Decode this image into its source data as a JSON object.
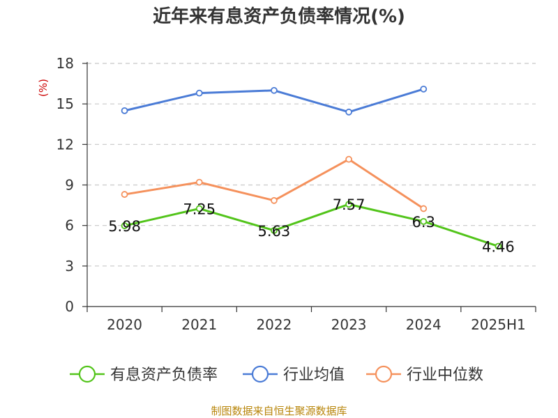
{
  "chart_data": {
    "type": "line",
    "title": "近年来有息资产负债率情况(%)",
    "unit_label": "(%)",
    "categories": [
      "2020",
      "2021",
      "2022",
      "2023",
      "2024",
      "2025H1"
    ],
    "ylim": [
      0,
      18
    ],
    "yticks": [
      "0",
      "3",
      "6",
      "9",
      "12",
      "15",
      "18"
    ],
    "grid": true,
    "legend_position": "bottom",
    "series": [
      {
        "name": "有息资产负债率",
        "color": "#52c41a",
        "values": [
          5.98,
          7.25,
          5.63,
          7.57,
          6.3,
          4.46
        ],
        "labels": [
          "5.98",
          "7.25",
          "5.63",
          "7.57",
          "6.3",
          "4.46"
        ]
      },
      {
        "name": "行业均值",
        "color": "#4a7bd6",
        "values": [
          14.5,
          15.8,
          16.0,
          14.4,
          16.1,
          null
        ]
      },
      {
        "name": "行业中位数",
        "color": "#f5915c",
        "values": [
          8.3,
          9.2,
          7.85,
          10.9,
          7.25,
          null
        ]
      }
    ],
    "source": "制图数据来自恒生聚源数据库"
  }
}
